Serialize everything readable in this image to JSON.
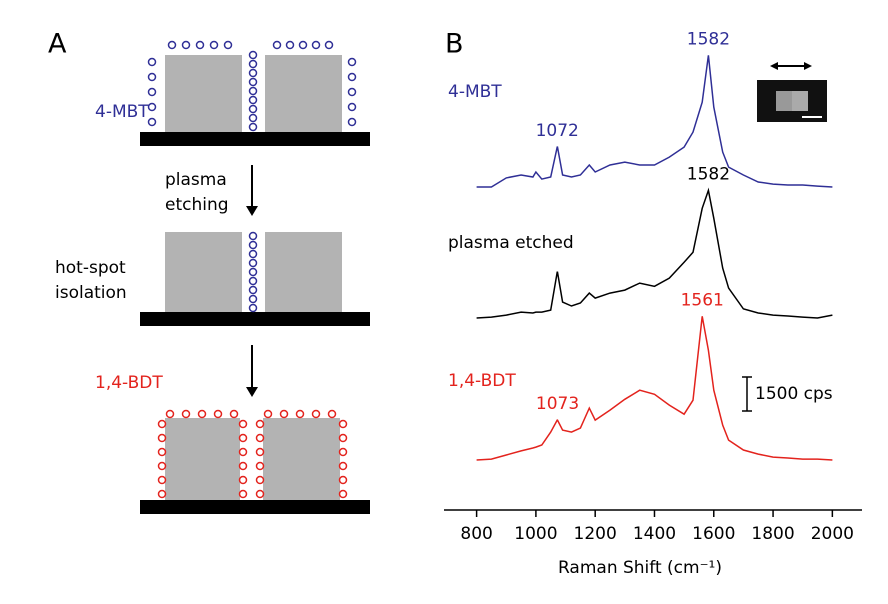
{
  "panel_a": {
    "label": "A",
    "top_label": "4-MBT",
    "step1": [
      "plasma",
      "etching"
    ],
    "middle_label": [
      "hot-spot",
      "isolation"
    ],
    "bottom_label": "1,4-BDT"
  },
  "chart_data": {
    "type": "line",
    "panel_label": "B",
    "x": [
      800,
      850,
      900,
      950,
      990,
      1000,
      1020,
      1050,
      1072,
      1073,
      1090,
      1120,
      1150,
      1180,
      1200,
      1250,
      1300,
      1350,
      1400,
      1450,
      1500,
      1530,
      1561,
      1582,
      1600,
      1630,
      1650,
      1700,
      1750,
      1800,
      1850,
      1900,
      1950,
      2000
    ],
    "series": [
      {
        "name": "4-MBT",
        "color": "#2f2f96",
        "peak_labels": [
          1072,
          1582
        ],
        "values": [
          0,
          0,
          400,
          530,
          440,
          660,
          350,
          440,
          1760,
          1760,
          530,
          440,
          530,
          970,
          660,
          970,
          1100,
          970,
          970,
          1320,
          1760,
          2420,
          3740,
          5810,
          3520,
          1540,
          880,
          530,
          220,
          130,
          90,
          90,
          40,
          0
        ]
      },
      {
        "name": "plasma etched",
        "color": "#000000",
        "peak_labels": [
          1582
        ],
        "values": [
          0,
          40,
          130,
          260,
          220,
          260,
          260,
          350,
          2020,
          2020,
          700,
          530,
          660,
          1100,
          880,
          1100,
          1230,
          1540,
          1400,
          1760,
          2460,
          2900,
          4840,
          5630,
          4400,
          2200,
          1320,
          400,
          220,
          130,
          90,
          40,
          0,
          130
        ]
      },
      {
        "name": "1,4-BDT",
        "color": "#e3231d",
        "peak_labels": [
          1073,
          1561
        ],
        "values": [
          0,
          40,
          220,
          400,
          530,
          570,
          660,
          1230,
          1760,
          1760,
          1320,
          1230,
          1410,
          2290,
          1760,
          2200,
          2680,
          3080,
          2900,
          2420,
          2020,
          2640,
          6340,
          4840,
          3080,
          1540,
          880,
          440,
          260,
          130,
          90,
          40,
          40,
          0
        ]
      }
    ],
    "xlim": [
      690,
      2100
    ],
    "xticks": [
      800,
      1000,
      1200,
      1400,
      1600,
      1800,
      2000
    ],
    "xlabel": "Raman Shift (cm⁻¹)",
    "scale_bar": {
      "value": 1500,
      "label": "1500 cps"
    }
  }
}
